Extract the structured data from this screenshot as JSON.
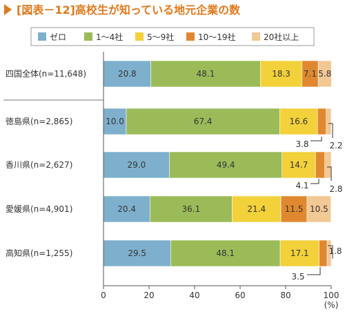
{
  "chart_data": {
    "type": "bar",
    "orientation": "horizontal",
    "stacked": true,
    "title": "[図表－12]高校生が知っている地元企業の数",
    "xlabel": "(%)",
    "xlim": [
      0,
      100
    ],
    "xticks": [
      0,
      20,
      40,
      60,
      80,
      100
    ],
    "categories": [
      "四国全体(n=11,648)",
      "徳島県(n=2,865)",
      "香川県(n=2,627)",
      "愛媛県(n=4,901)",
      "高知県(n=1,255)"
    ],
    "series": [
      {
        "name": "ゼロ",
        "color": "#7eb0cd",
        "values": [
          20.8,
          10.0,
          29.0,
          20.4,
          29.5
        ]
      },
      {
        "name": "1～4社",
        "color": "#9bbb59",
        "values": [
          48.1,
          67.4,
          49.4,
          36.1,
          48.1
        ]
      },
      {
        "name": "5～9社",
        "color": "#f2d13a",
        "values": [
          18.3,
          16.6,
          14.7,
          21.4,
          17.1
        ]
      },
      {
        "name": "10～19社",
        "color": "#e0882f",
        "values": [
          7.1,
          3.8,
          4.1,
          11.5,
          3.5
        ]
      },
      {
        "name": "20社以上",
        "color": "#f2c894",
        "values": [
          5.8,
          2.2,
          2.8,
          10.5,
          1.8
        ]
      }
    ],
    "value_labels": [
      [
        "20.8",
        "48.1",
        "18.3",
        "7.1",
        "5.8"
      ],
      [
        "10.0",
        "67.4",
        "16.6",
        "3.8",
        "2.2"
      ],
      [
        "29.0",
        "49.4",
        "14.7",
        "4.1",
        "2.8"
      ],
      [
        "20.4",
        "36.1",
        "21.4",
        "11.5",
        "10.5"
      ],
      [
        "29.5",
        "48.1",
        "17.1",
        "3.5",
        "1.8"
      ]
    ],
    "title_marker_color": "#e07a1f",
    "grid": false,
    "legend_position": "top"
  }
}
